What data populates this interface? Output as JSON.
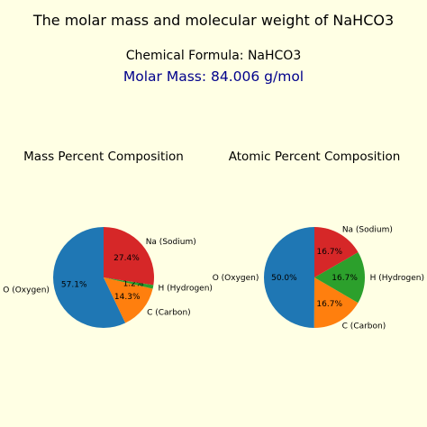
{
  "title": "The molar mass and molecular weight of NaHCO3",
  "formula_text": "Chemical Formula: NaHCO3",
  "molar_mass_text": "Molar Mass: 84.006 g/mol",
  "colors": {
    "background": "#ffffe4",
    "molar_mass_text": "#00008b",
    "oxygen": "#1f77b4",
    "carbon": "#ff7f0e",
    "hydrogen": "#2ca02c",
    "sodium": "#d62728"
  },
  "chart_data": [
    {
      "type": "pie",
      "title": "Mass Percent Composition",
      "start_angle_deg": 90,
      "direction": "counterclockwise",
      "slices": [
        {
          "label": "O (Oxygen)",
          "value": 57.1,
          "pct_text": "57.1%",
          "color": "#1f77b4"
        },
        {
          "label": "C (Carbon)",
          "value": 14.3,
          "pct_text": "14.3%",
          "color": "#ff7f0e"
        },
        {
          "label": "H (Hydrogen)",
          "value": 1.2,
          "pct_text": "1.2%",
          "color": "#2ca02c"
        },
        {
          "label": "Na (Sodium)",
          "value": 27.4,
          "pct_text": "27.4%",
          "color": "#d62728"
        }
      ]
    },
    {
      "type": "pie",
      "title": "Atomic Percent Composition",
      "start_angle_deg": 90,
      "direction": "counterclockwise",
      "slices": [
        {
          "label": "O (Oxygen)",
          "value": 50.0,
          "pct_text": "50.0%",
          "color": "#1f77b4"
        },
        {
          "label": "C (Carbon)",
          "value": 16.7,
          "pct_text": "16.7%",
          "color": "#ff7f0e"
        },
        {
          "label": "H (Hydrogen)",
          "value": 16.7,
          "pct_text": "16.7%",
          "color": "#2ca02c"
        },
        {
          "label": "Na (Sodium)",
          "value": 16.7,
          "pct_text": "16.7%",
          "color": "#d62728"
        }
      ]
    }
  ]
}
